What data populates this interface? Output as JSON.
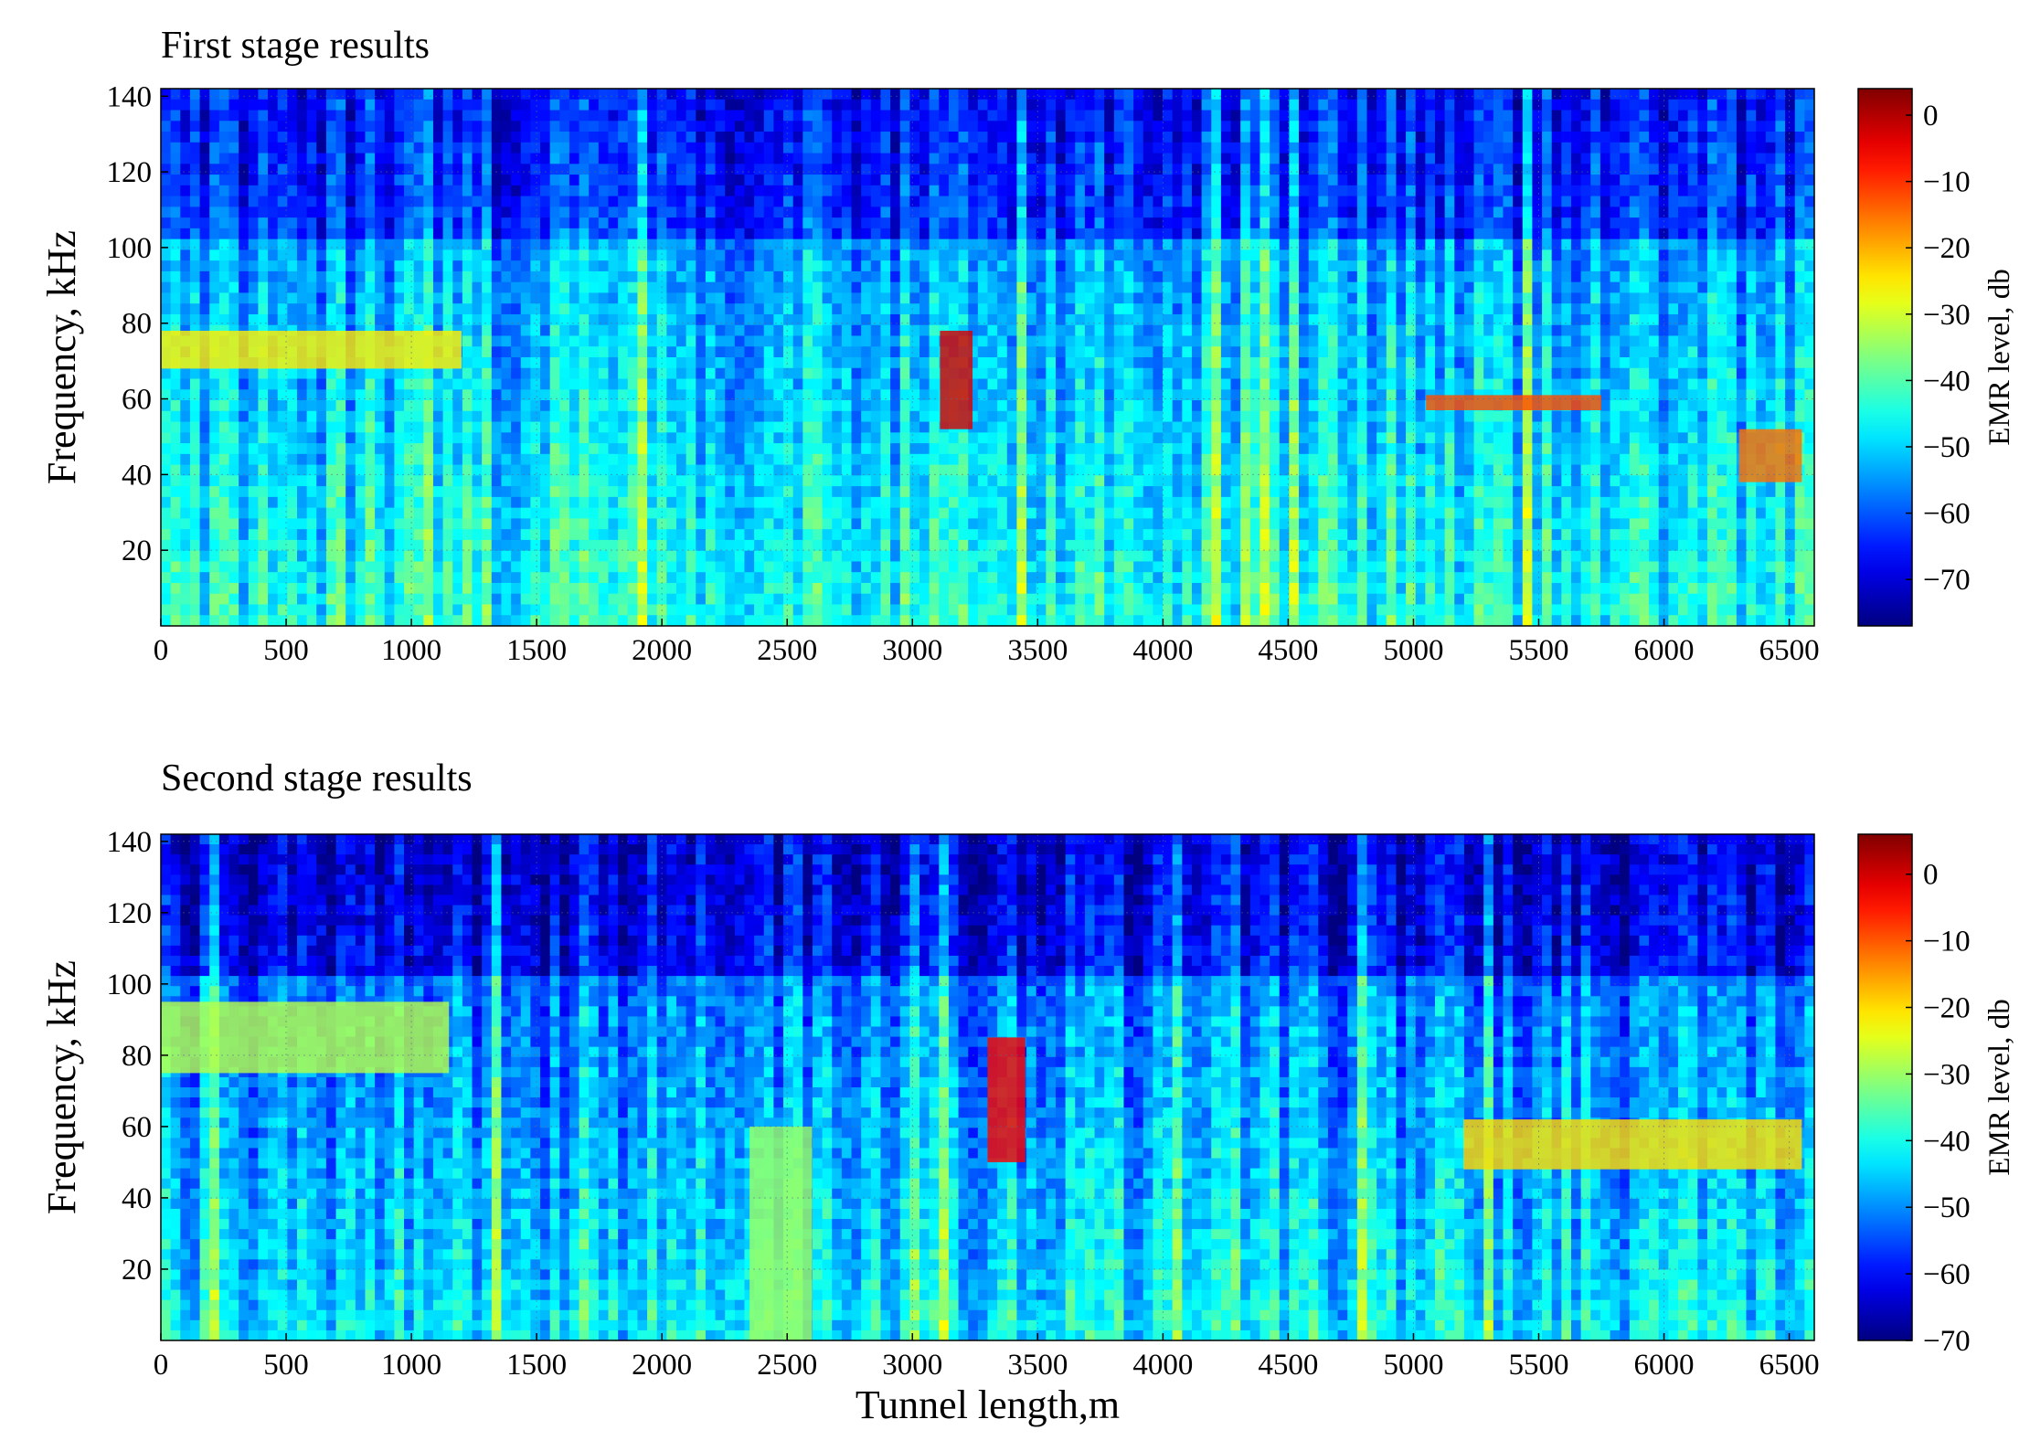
{
  "chart_data": [
    {
      "type": "heatmap",
      "title": "First stage results",
      "xlabel": "",
      "ylabel": "Frequency, kHz",
      "colorbar_label": "EMR level, db",
      "xlim": [
        0,
        6600
      ],
      "ylim": [
        0,
        142
      ],
      "x_ticks": [
        0,
        500,
        1000,
        1500,
        2000,
        2500,
        3000,
        3500,
        4000,
        4500,
        5000,
        5500,
        6000,
        6500
      ],
      "y_ticks": [
        20,
        40,
        60,
        80,
        100,
        120,
        140
      ],
      "colorbar_range": [
        -77,
        4
      ],
      "colorbar_ticks": [
        "0",
        "−10",
        "−20",
        "−30",
        "−40",
        "−50",
        "−60",
        "−70"
      ],
      "colorbar_values": [
        0,
        -10,
        -20,
        -30,
        -40,
        -50,
        -60,
        -70
      ],
      "colormap": "jet",
      "features": [
        {
          "x": [
            3110,
            3240
          ],
          "y": [
            52,
            78
          ],
          "level_db": -3,
          "desc": "hotspot"
        },
        {
          "x": [
            0,
            1200
          ],
          "y": [
            68,
            78
          ],
          "level_db": -25,
          "desc": "band"
        },
        {
          "x": [
            5050,
            5750
          ],
          "y": [
            57,
            61
          ],
          "level_db": -12,
          "desc": "band"
        },
        {
          "x": [
            6300,
            6550
          ],
          "y": [
            38,
            52
          ],
          "level_db": -15,
          "desc": "patch"
        }
      ]
    },
    {
      "type": "heatmap",
      "title": "Second stage results",
      "xlabel": "Tunnel length,m",
      "ylabel": "Frequency, kHz",
      "colorbar_label": "EMR level, db",
      "xlim": [
        0,
        6600
      ],
      "ylim": [
        0,
        142
      ],
      "x_ticks": [
        0,
        500,
        1000,
        1500,
        2000,
        2500,
        3000,
        3500,
        4000,
        4500,
        5000,
        5500,
        6000,
        6500
      ],
      "y_ticks": [
        20,
        40,
        60,
        80,
        100,
        120,
        140
      ],
      "colorbar_range": [
        -70,
        6
      ],
      "colorbar_ticks": [
        "0",
        "−10",
        "−20",
        "−30",
        "−40",
        "−50",
        "−60",
        "−70"
      ],
      "colorbar_values": [
        0,
        -10,
        -20,
        -30,
        -40,
        -50,
        -60,
        -70
      ],
      "colormap": "jet",
      "features": [
        {
          "x": [
            3300,
            3450
          ],
          "y": [
            50,
            85
          ],
          "level_db": -3,
          "desc": "hotspot"
        },
        {
          "x": [
            5200,
            6550
          ],
          "y": [
            48,
            62
          ],
          "level_db": -20,
          "desc": "band"
        },
        {
          "x": [
            0,
            1150
          ],
          "y": [
            75,
            95
          ],
          "level_db": -28,
          "desc": "band"
        },
        {
          "x": [
            2350,
            2600
          ],
          "y": [
            0,
            60
          ],
          "level_db": -30,
          "desc": "strip"
        }
      ]
    }
  ]
}
